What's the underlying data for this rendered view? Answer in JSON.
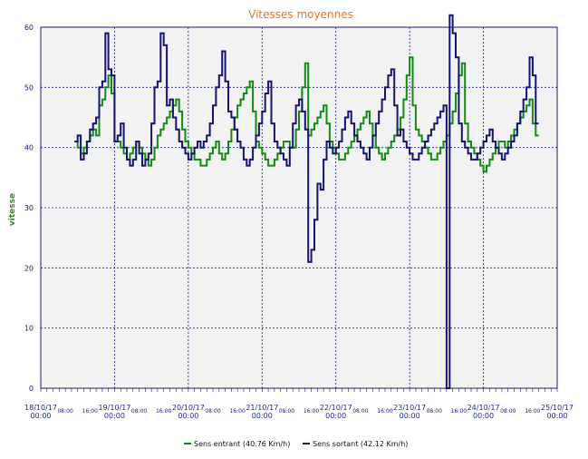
{
  "chart_data": {
    "type": "line",
    "title": "Vitesses moyennes",
    "ylabel": "vitesse",
    "ylim": [
      0,
      60
    ],
    "yticks": [
      0,
      10,
      20,
      30,
      40,
      50,
      60
    ],
    "xlim_hours": [
      0,
      168
    ],
    "x_major_labels": [
      {
        "date": "18/10/17",
        "time": "00:00"
      },
      {
        "date": "19/10/17",
        "time": "00:00"
      },
      {
        "date": "20/10/17",
        "time": "00:00"
      },
      {
        "date": "21/10/17",
        "time": "00:00"
      },
      {
        "date": "22/10/17",
        "time": "00:00"
      },
      {
        "date": "23/10/17",
        "time": "00:00"
      },
      {
        "date": "24/10/17",
        "time": "00:00"
      },
      {
        "date": "25/10/17",
        "time": "00:00"
      }
    ],
    "x_minor_labels": [
      "08:00",
      "16:00"
    ],
    "grid": true,
    "legend_position": "bottom",
    "series": [
      {
        "name": "Sens entrant (40.76 Km/h)",
        "color": "#138a13",
        "hour_start": 11,
        "values": [
          41,
          40,
          39,
          40,
          41,
          42,
          43,
          42,
          47,
          48,
          50,
          52,
          49,
          41,
          41,
          40,
          39,
          38,
          39,
          40,
          41,
          40,
          39,
          38,
          37,
          38,
          40,
          42,
          43,
          44,
          45,
          46,
          47,
          48,
          46,
          43,
          41,
          40,
          39,
          38,
          38,
          37,
          37,
          38,
          39,
          40,
          41,
          39,
          38,
          39,
          41,
          43,
          45,
          47,
          48,
          49,
          50,
          51,
          46,
          41,
          40,
          39,
          38,
          37,
          37,
          38,
          39,
          40,
          41,
          41,
          40,
          40,
          43,
          46,
          50,
          54,
          42,
          43,
          44,
          45,
          46,
          47,
          44,
          41,
          40,
          39,
          38,
          38,
          39,
          40,
          41,
          42,
          43,
          44,
          45,
          46,
          44,
          42,
          40,
          39,
          38,
          39,
          40,
          41,
          42,
          43,
          45,
          48,
          52,
          55,
          47,
          43,
          42,
          41,
          40,
          39,
          38,
          38,
          39,
          40,
          41,
          42,
          44,
          46,
          49,
          52,
          54,
          44,
          41,
          40,
          39,
          38,
          37,
          36,
          37,
          38,
          39,
          40,
          41,
          41,
          40,
          41,
          42,
          43,
          44,
          45,
          46,
          47,
          48,
          44,
          42
        ]
      },
      {
        "name": "Sens sortant (42.12 Km/h)",
        "color": "#14146e",
        "hour_start": 11,
        "values": [
          41,
          42,
          38,
          39,
          41,
          43,
          44,
          45,
          50,
          51,
          59,
          53,
          52,
          41,
          42,
          44,
          40,
          38,
          37,
          38,
          41,
          39,
          37,
          38,
          39,
          44,
          50,
          51,
          59,
          57,
          47,
          48,
          45,
          43,
          41,
          40,
          39,
          38,
          39,
          40,
          41,
          40,
          41,
          42,
          44,
          47,
          50,
          52,
          56,
          51,
          46,
          45,
          43,
          41,
          40,
          38,
          37,
          38,
          40,
          42,
          44,
          46,
          49,
          51,
          44,
          41,
          40,
          39,
          38,
          37,
          40,
          44,
          47,
          48,
          46,
          43,
          21,
          23,
          28,
          34,
          33,
          38,
          41,
          40,
          39,
          40,
          41,
          43,
          45,
          46,
          44,
          42,
          41,
          40,
          39,
          38,
          40,
          42,
          44,
          46,
          48,
          50,
          52,
          53,
          47,
          42,
          43,
          41,
          40,
          39,
          38,
          38,
          39,
          40,
          41,
          42,
          43,
          44,
          45,
          46,
          47,
          0,
          62,
          59,
          55,
          44,
          41,
          40,
          39,
          38,
          38,
          39,
          40,
          41,
          42,
          43,
          41,
          40,
          39,
          38,
          39,
          40,
          41,
          42,
          44,
          46,
          48,
          50,
          55,
          52,
          44
        ]
      }
    ]
  }
}
